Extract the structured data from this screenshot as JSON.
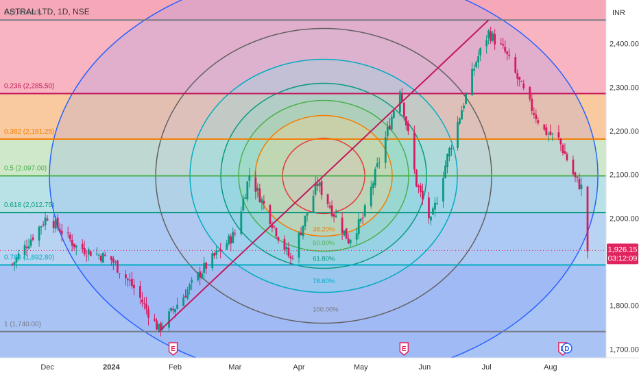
{
  "header": {
    "symbol_title": "ASTRAL LTD, 1D, NSE"
  },
  "price_scale": {
    "currency": "INR",
    "last_price_label": "1,926.15",
    "countdown_label": "03:12:09",
    "colors": {
      "last_price_bg": "#e0245e",
      "up": "#089981",
      "down": "#d81b60",
      "text": "#333333"
    }
  },
  "chart_data": {
    "type": "candlestick-with-fibonacci",
    "title": "ASTRAL LTD, 1D, NSE",
    "y_range": [
      1680,
      2500
    ],
    "x_range_days": [
      "2023-11-13",
      "2024-08-20"
    ],
    "y_ticks": [
      {
        "value": 2400,
        "label": "2,400.00"
      },
      {
        "value": 2300,
        "label": "2,300.00"
      },
      {
        "value": 2200,
        "label": "2,200.00"
      },
      {
        "value": 2100,
        "label": "2,100.00"
      },
      {
        "value": 2000,
        "label": "2,000.00"
      },
      {
        "value": 1800,
        "label": "1,800.00"
      },
      {
        "value": 1700,
        "label": "1,700.00"
      }
    ],
    "x_ticks": [
      {
        "date": "2023-12-01",
        "label": "Dec",
        "bold": false
      },
      {
        "date": "2024-01-01",
        "label": "2024",
        "bold": true
      },
      {
        "date": "2024-02-01",
        "label": "Feb",
        "bold": false
      },
      {
        "date": "2024-03-01",
        "label": "Mar",
        "bold": false
      },
      {
        "date": "2024-04-01",
        "label": "Apr",
        "bold": false
      },
      {
        "date": "2024-05-01",
        "label": "May",
        "bold": false
      },
      {
        "date": "2024-06-01",
        "label": "Jun",
        "bold": false
      },
      {
        "date": "2024-07-01",
        "label": "Jul",
        "bold": false
      },
      {
        "date": "2024-08-01",
        "label": "Aug",
        "bold": false
      }
    ],
    "fib_retracement": [
      {
        "ratio": "0",
        "price": 2454.0,
        "label": "0 (2,454.00)",
        "color": "#787b86",
        "band": "#f7a8b8"
      },
      {
        "ratio": "0.236",
        "price": 2285.5,
        "label": "0.236 (2,285.50)",
        "color": "#c2185b",
        "band": "#f8b4c0"
      },
      {
        "ratio": "0.382",
        "price": 2181.25,
        "label": "0.382 (2,181.25)",
        "color": "#f57c00",
        "band": "#f9c9a0"
      },
      {
        "ratio": "0.5",
        "price": 2097.0,
        "label": "0.5 (2,097.00)",
        "color": "#4caf50",
        "band": "#cfe8c9"
      },
      {
        "ratio": "0.618",
        "price": 2012.75,
        "label": "0.618 (2,012.75)",
        "color": "#089981",
        "band": "#b9e2e6"
      },
      {
        "ratio": "0.786",
        "price": 1892.8,
        "label": "0.786 (1,892.80)",
        "color": "#00acc1",
        "band": "#b8d4f2"
      },
      {
        "ratio": "1",
        "price": 1740.0,
        "label": "1 (1,740.00)",
        "color": "#787b86",
        "band": "#a9c3f5"
      }
    ],
    "fib_circle_labels": [
      {
        "label": "38.20%",
        "color": "#f57c00"
      },
      {
        "label": "50.00%",
        "color": "#4caf50"
      },
      {
        "label": "61.80%",
        "color": "#089981"
      },
      {
        "label": "78.60%",
        "color": "#00acc1"
      },
      {
        "label": "100.00%",
        "color": "#787b86"
      }
    ],
    "trend_line": {
      "from": {
        "date": "2024-01-24",
        "price": 1740.0
      },
      "to": {
        "date": "2024-07-02",
        "price": 2454.0
      },
      "color": "#c2185b"
    },
    "event_markers": [
      {
        "date": "2024-01-31",
        "letter": "E"
      },
      {
        "date": "2024-05-22",
        "letter": "E"
      },
      {
        "date": "2024-08-07",
        "letter": "E"
      },
      {
        "date": "2024-08-09",
        "letter": "D"
      }
    ],
    "key_points": [
      {
        "date": "2023-11-14",
        "price": 1895
      },
      {
        "date": "2023-12-01",
        "price": 2005
      },
      {
        "date": "2023-12-15",
        "price": 1935
      },
      {
        "date": "2024-01-01",
        "price": 1905
      },
      {
        "date": "2024-01-12",
        "price": 1840
      },
      {
        "date": "2024-01-24",
        "price": 1745
      },
      {
        "date": "2024-02-14",
        "price": 1880
      },
      {
        "date": "2024-03-01",
        "price": 1965
      },
      {
        "date": "2024-03-08",
        "price": 2100
      },
      {
        "date": "2024-03-22",
        "price": 1960
      },
      {
        "date": "2024-03-28",
        "price": 1905
      },
      {
        "date": "2024-04-10",
        "price": 2080
      },
      {
        "date": "2024-04-25",
        "price": 1950
      },
      {
        "date": "2024-05-02",
        "price": 2000
      },
      {
        "date": "2024-05-08",
        "price": 2100
      },
      {
        "date": "2024-05-20",
        "price": 2300
      },
      {
        "date": "2024-05-28",
        "price": 2080
      },
      {
        "date": "2024-06-04",
        "price": 1990
      },
      {
        "date": "2024-06-12",
        "price": 2140
      },
      {
        "date": "2024-06-26",
        "price": 2360
      },
      {
        "date": "2024-07-02",
        "price": 2425
      },
      {
        "date": "2024-07-10",
        "price": 2380
      },
      {
        "date": "2024-07-22",
        "price": 2260
      },
      {
        "date": "2024-07-29",
        "price": 2200
      },
      {
        "date": "2024-08-05",
        "price": 2180
      },
      {
        "date": "2024-08-13",
        "price": 2090
      },
      {
        "date": "2024-08-16",
        "price": 2070
      },
      {
        "date": "2024-08-19",
        "price": 1926
      }
    ]
  }
}
